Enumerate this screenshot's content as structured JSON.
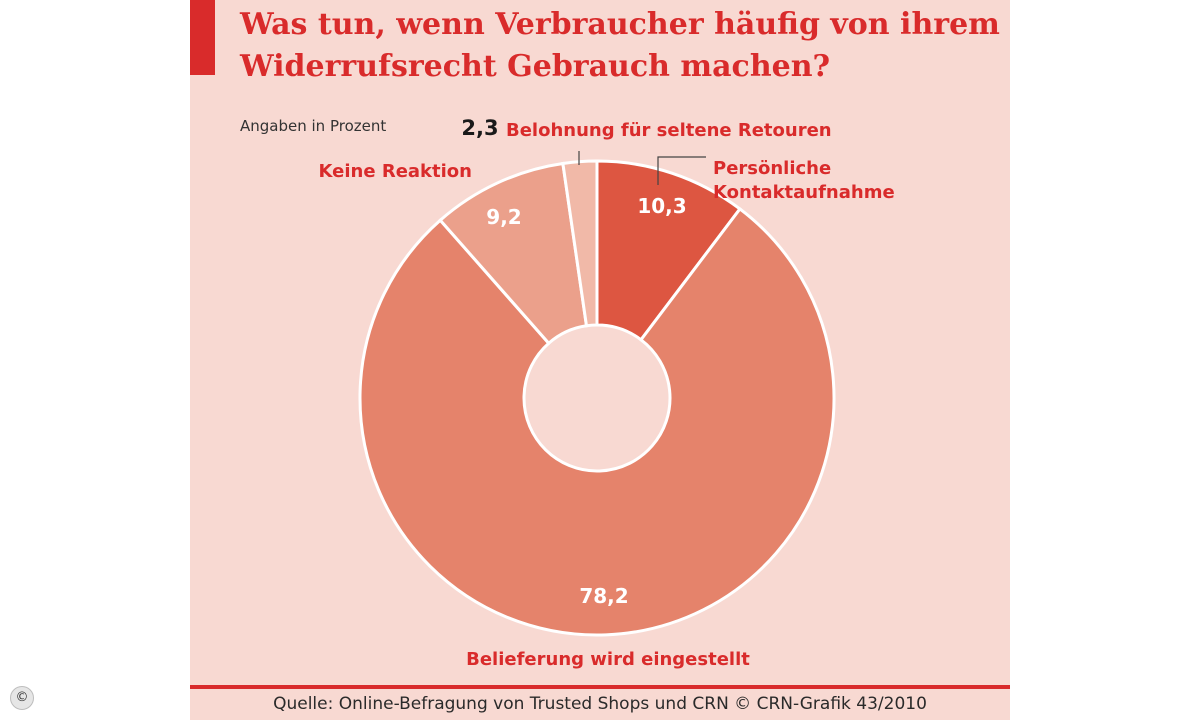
{
  "header": {
    "title": "Was tun, wenn Verbraucher häufig von ihrem Widerrufsrecht Gebrauch machen?",
    "subtitle": "Angaben in Prozent"
  },
  "footer": {
    "source": "Quelle: Online-Befragung von Trusted Shops und CRN © CRN-Grafik 43/2010",
    "copyright_icon": "©"
  },
  "colors": {
    "brand_red": "#d92b2b",
    "background": "#f8d9d2"
  },
  "chart_data": {
    "type": "pie",
    "variant": "donut",
    "unit": "Prozent",
    "slices": [
      {
        "label": "Persönliche Kontaktaufnahme",
        "label_lines": [
          "Persönliche",
          "Kontaktaufnahme"
        ],
        "value": 10.3,
        "display": "10,3",
        "color": "#dd5641"
      },
      {
        "label": "Belieferung wird eingestellt",
        "label_lines": [
          "Belieferung wird eingestellt"
        ],
        "value": 78.2,
        "display": "78,2",
        "color": "#e5836b"
      },
      {
        "label": "Keine Reaktion",
        "label_lines": [
          "Keine Reaktion"
        ],
        "value": 9.2,
        "display": "9,2",
        "color": "#eba08b"
      },
      {
        "label": "Belohnung für seltene Retouren",
        "label_lines": [
          "Belohnung für seltene Retouren"
        ],
        "value": 2.3,
        "display": "2,3",
        "color": "#f1b9a8"
      }
    ]
  }
}
